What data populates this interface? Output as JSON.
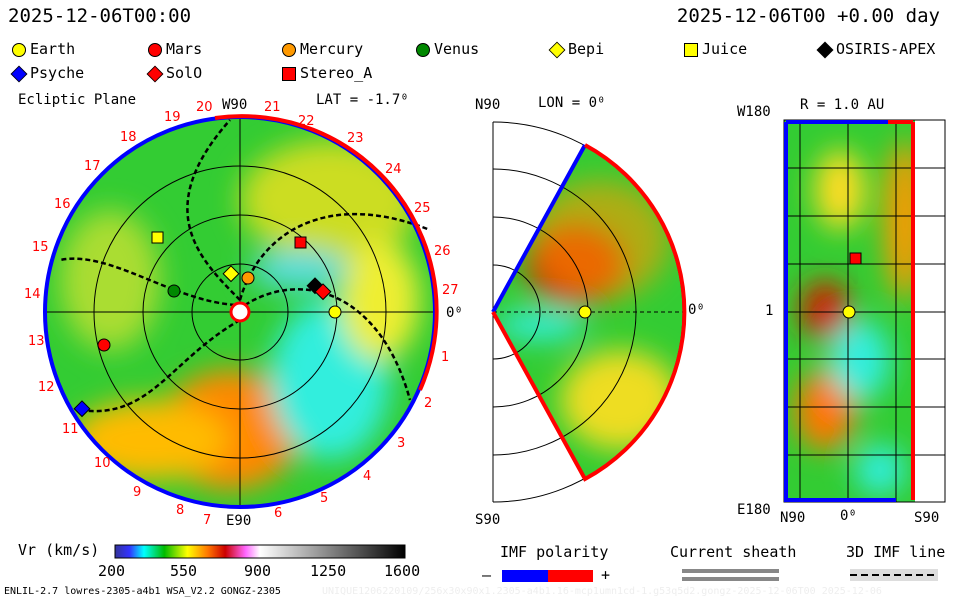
{
  "header": {
    "left_time": "2025-12-06T00:00",
    "right_time": "2025-12-06T00 +0.00 day"
  },
  "legend": [
    {
      "label": "Earth",
      "color": "#ffff00",
      "shape": "circle"
    },
    {
      "label": "Mars",
      "color": "#ff0000",
      "shape": "circle"
    },
    {
      "label": "Mercury",
      "color": "#ff9900",
      "shape": "circle"
    },
    {
      "label": "Venus",
      "color": "#008800",
      "shape": "circle"
    },
    {
      "label": "Bepi",
      "color": "#ffff00",
      "shape": "diamond"
    },
    {
      "label": "Juice",
      "color": "#ffff00",
      "shape": "square"
    },
    {
      "label": "OSIRIS-APEX",
      "color": "#000000",
      "shape": "diamond"
    },
    {
      "label": "Psyche",
      "color": "#0000ff",
      "shape": "diamond"
    },
    {
      "label": "SolO",
      "color": "#ff0000",
      "shape": "diamond"
    },
    {
      "label": "Stereo_A",
      "color": "#ff0000",
      "shape": "square"
    }
  ],
  "ecliptic": {
    "title": "Ecliptic Plane",
    "top": "W90",
    "bottom": "E90",
    "lat": "LAT = -1.7⁰",
    "right": "0⁰",
    "ticks": [
      "1",
      "2",
      "3",
      "4",
      "5",
      "6",
      "7",
      "8",
      "9",
      "10",
      "11",
      "12",
      "13",
      "14",
      "15",
      "16",
      "17",
      "18",
      "19",
      "20",
      "21",
      "22",
      "23",
      "24",
      "25",
      "26",
      "27"
    ]
  },
  "meridional": {
    "top": "N90",
    "lon": "LON = 0⁰",
    "right": "0⁰",
    "bottom": "S90"
  },
  "radial": {
    "title": "R = 1.0 AU",
    "top": "W180",
    "mid": "1",
    "bottom": "E180",
    "n": "N90",
    "zero": "0⁰",
    "s": "S90"
  },
  "chart_data": {
    "type": "heatmap",
    "title": "Vr (km/s)",
    "colorbar_ticks": [
      "200",
      "550",
      "900",
      "1250",
      "1600"
    ],
    "range": [
      200,
      1600
    ]
  },
  "footer": {
    "polarity_title": "IMF polarity",
    "minus": "–",
    "plus": "+",
    "sheath": "Current sheath",
    "imf_line": "3D IMF line",
    "model": "ENLIL-2.7 lowres-2305-a4b1 WSA_V2.2 GONGZ-2305",
    "run": "UNIQUE1206220109/256x30x90x1.2305-a4b1.16-mcp1umn1cd-1.g53q5d2.gongz-2025-12-06T00   2025-12-06"
  },
  "colors": {
    "positive": "#ff0000",
    "negative": "#0000ff"
  }
}
